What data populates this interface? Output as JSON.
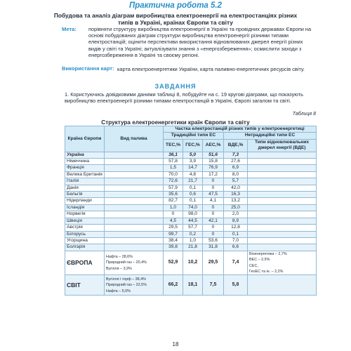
{
  "header": {
    "work_title": "Практична робота 5.2",
    "topic": "Побудова та аналіз діаграм виробництва електроенергії на електростанціях різних типів в Україні, країнах Європи та світу"
  },
  "goal": {
    "label": "Мета:",
    "text": "порівняти структуру виробництва електроенергії в Україні та провідних державах Європи на основі побудованих діаграм структури виробництва електроенергії різними типами електростанцій; оцінити перспективи використання відновлюваних джерел енергії різних видів у світі та Україні; актуалізувати знання з «енергозбереження»; осмислити заходи з енергозбереження в Україні та своєму регіоні."
  },
  "sources": {
    "label": "Використання карт:",
    "text": "карта електроенергетики України, карта паливно-енергетичних ресурсів світу."
  },
  "tasks": {
    "heading": "ЗАВДАННЯ",
    "task1": "1. Користуючись довідковими даними таблиці 8, побудуйте на с. 19 кругові діаграми, що показують виробництво електроенергії різними типами електростанцій в Україні, Європі загалом та світі."
  },
  "table": {
    "note": "Таблиця 8",
    "caption": "Структура електроенергетики країн Європи та світу",
    "head": {
      "country": "Країна Європи",
      "fuel": "Вид палива",
      "share": "Частка електростанцій різних типів у електроенергетиці",
      "traditional": "Традиційні типи ЕС",
      "nontraditional": "Нетрадиційні типи ЕС",
      "tes": "ТЕС,%",
      "ges": "ГЕС,%",
      "aes": "АЕС,%",
      "vde": "ВДЕ,%",
      "renewable": "Типи відновлювальних джерел енергії (ВДЕ)"
    },
    "rows": [
      {
        "country": "Україна",
        "tes": "36,1",
        "ges": "5,0",
        "aes": "51,6",
        "vde": "7,3"
      },
      {
        "country": "Німеччина",
        "tes": "57,8",
        "ges": "3,9",
        "aes": "15,8",
        "vde": "27,6"
      },
      {
        "country": "Франція",
        "tes": "1,5",
        "ges": "14,7",
        "aes": "76,9",
        "vde": "6,9"
      },
      {
        "country": "Велика Британія",
        "tes": "70,0",
        "ges": "4,8",
        "aes": "17,2",
        "vde": "8,0"
      },
      {
        "country": "Італія",
        "tes": "72,6",
        "ges": "21,7",
        "aes": "0",
        "vde": "5,7"
      },
      {
        "country": "Данія",
        "tes": "57,9",
        "ges": "0,1",
        "aes": "0",
        "vde": "42,0"
      },
      {
        "country": "Бельгія",
        "tes": "35,6",
        "ges": "0,6",
        "aes": "47,5",
        "vde": "16,3"
      },
      {
        "country": "Нідерланди",
        "tes": "82,7",
        "ges": "0,1",
        "aes": "4,1",
        "vde": "13,2"
      },
      {
        "country": "Ісландія",
        "tes": "1,0",
        "ges": "74,0",
        "aes": "0",
        "vde": "25,0"
      },
      {
        "country": "Норвегія",
        "tes": "0",
        "ges": "98,0",
        "aes": "0",
        "vde": "2,0"
      },
      {
        "country": "Швеція",
        "tes": "4,5",
        "ges": "44,5",
        "aes": "42,1",
        "vde": "8,9"
      },
      {
        "country": "Австрія",
        "tes": "29,5",
        "ges": "57,7",
        "aes": "0",
        "vde": "12,8"
      },
      {
        "country": "Білорусь",
        "tes": "99,7",
        "ges": "0,2",
        "aes": "0",
        "vde": "0,1"
      },
      {
        "country": "Угорщина",
        "tes": "38,4",
        "ges": "1,0",
        "aes": "53,6",
        "vde": "7,0"
      },
      {
        "country": "Болгарія",
        "tes": "39,8",
        "ges": "21,8",
        "aes": "31,8",
        "vde": "6,6"
      }
    ],
    "europe": {
      "country": "ЄВРОПА",
      "fuel": "Нафта – 28,6%\nПриродний газ – 20,4%\nВугілля – 3,9%",
      "tes": "52,9",
      "ges": "10,2",
      "aes": "29,5",
      "vde": "7,4",
      "renewable": "Біоенергетика – 2,7%\nВЕС – 2,5%\nСЕС,\nГеоЕС та ін. – 2,2%"
    },
    "world": {
      "country": "СВІТ",
      "fuel": "Вугілля і торф – 38,4%\nПриродний газ – 22,5%\nНафта – 5,0%",
      "tes": "66,2",
      "ges": "18,1",
      "aes": "7,5",
      "vde": "5,8",
      "renewable": ""
    }
  },
  "footer": {
    "page_number": "18"
  }
}
